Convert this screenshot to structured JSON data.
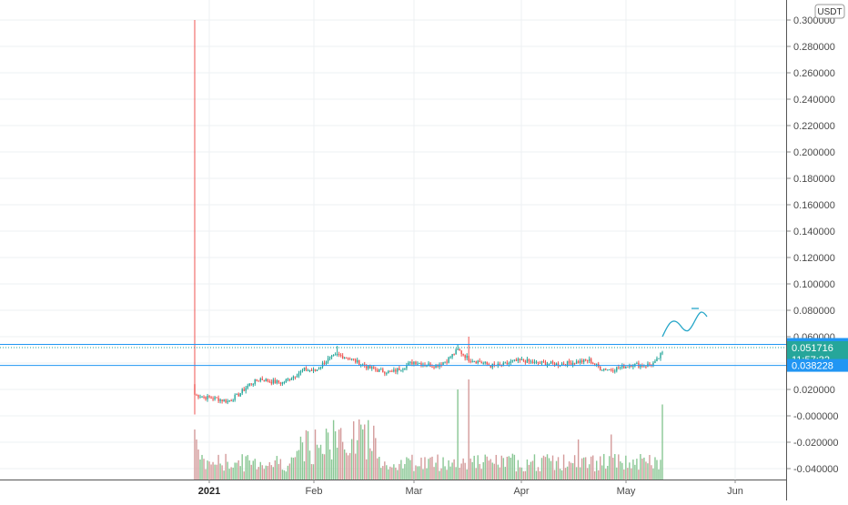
{
  "currency_button": "USDT",
  "colors": {
    "up": "#26a69a",
    "down": "#ef5350",
    "vol_up": "#89c794",
    "vol_down": "#d49b9b",
    "hline": "#2196f3",
    "drawing": "#26a6c8",
    "last_price_bg": "#26a69a",
    "grid": "#eef0f3",
    "axis_text": "#4a4a4a"
  },
  "chart_data": {
    "type": "candlestick",
    "y_axis": {
      "min": -0.046,
      "max": 0.306,
      "ticks": [
        "0.300000",
        "0.280000",
        "0.260000",
        "0.240000",
        "0.220000",
        "0.200000",
        "0.180000",
        "0.160000",
        "0.140000",
        "0.120000",
        "0.100000",
        "0.080000",
        "0.060000",
        "0.040000",
        "0.020000",
        "-0.000000",
        "-0.020000",
        "-0.040000"
      ]
    },
    "x_axis": {
      "labels": [
        {
          "text": "2021",
          "year": true
        },
        {
          "text": "Feb",
          "year": false
        },
        {
          "text": "Mar",
          "year": false
        },
        {
          "text": "Apr",
          "year": false
        },
        {
          "text": "May",
          "year": false
        },
        {
          "text": "Jun",
          "year": false
        }
      ]
    },
    "price_badges": {
      "upper_line": "0.054135",
      "last_price": "0.051716",
      "countdown": "11:57:32",
      "lower_line": "0.038228"
    },
    "horizontal_lines": [
      0.054135,
      0.038228
    ],
    "last_price": 0.051716,
    "first_candle": {
      "open": 0.024,
      "high": 0.3,
      "low": 0.001,
      "close": 0.016
    },
    "key_closes": [
      [
        0,
        0.016
      ],
      [
        6,
        0.014
      ],
      [
        12,
        0.013
      ],
      [
        18,
        0.011
      ],
      [
        24,
        0.016
      ],
      [
        30,
        0.024
      ],
      [
        36,
        0.028
      ],
      [
        42,
        0.026
      ],
      [
        48,
        0.025
      ],
      [
        54,
        0.03
      ],
      [
        60,
        0.035
      ],
      [
        66,
        0.034
      ],
      [
        72,
        0.042
      ],
      [
        78,
        0.046
      ],
      [
        84,
        0.044
      ],
      [
        90,
        0.04
      ],
      [
        96,
        0.036
      ],
      [
        102,
        0.034
      ],
      [
        108,
        0.033
      ],
      [
        114,
        0.037
      ],
      [
        120,
        0.041
      ],
      [
        126,
        0.039
      ],
      [
        132,
        0.038
      ],
      [
        138,
        0.042
      ],
      [
        144,
        0.05
      ],
      [
        150,
        0.043
      ],
      [
        156,
        0.041
      ],
      [
        162,
        0.038
      ],
      [
        168,
        0.038
      ],
      [
        174,
        0.041
      ],
      [
        180,
        0.042
      ],
      [
        186,
        0.04
      ],
      [
        192,
        0.04
      ],
      [
        198,
        0.039
      ],
      [
        204,
        0.04
      ],
      [
        210,
        0.041
      ],
      [
        216,
        0.042
      ],
      [
        222,
        0.036
      ],
      [
        228,
        0.035
      ],
      [
        234,
        0.037
      ],
      [
        240,
        0.039
      ],
      [
        246,
        0.038
      ],
      [
        252,
        0.04
      ],
      [
        256,
        0.048
      ]
    ],
    "volume_spikes": [
      {
        "index": 144,
        "value": 0.9
      },
      {
        "index": 150,
        "value": 1.0
      },
      {
        "index": 90,
        "value": 0.6
      },
      {
        "index": 256,
        "value": 0.75
      },
      {
        "index": 210,
        "value": 0.4
      },
      {
        "index": 228,
        "value": 0.45
      }
    ],
    "drawing": "freehand upward projection arrow"
  }
}
